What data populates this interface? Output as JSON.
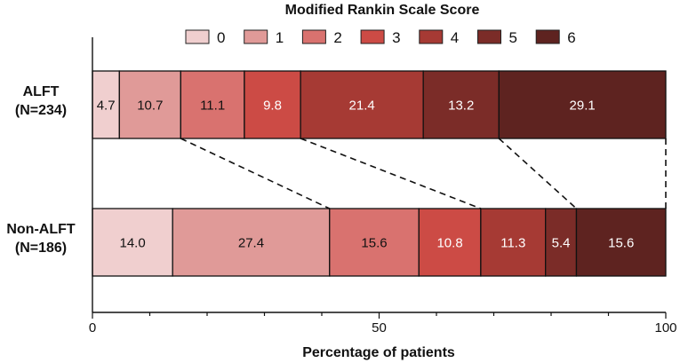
{
  "chart_data": {
    "type": "bar",
    "orientation": "horizontal-stacked-100",
    "title": "Modified Rankin Scale Score",
    "xlabel": "Percentage of patients",
    "ylabel": "",
    "xlim": [
      0,
      100
    ],
    "xticks": [
      0,
      50,
      100
    ],
    "legend": {
      "placement": "top",
      "entries": [
        "0",
        "1",
        "2",
        "3",
        "4",
        "5",
        "6"
      ]
    },
    "colors": [
      "#f0cfcf",
      "#e09a98",
      "#d9726f",
      "#cc4b45",
      "#a63a34",
      "#7b2c28",
      "#5e2320"
    ],
    "label_colors": [
      "#111111",
      "#111111",
      "#111111",
      "#ffffff",
      "#ffffff",
      "#ffffff",
      "#ffffff"
    ],
    "categories": [
      {
        "line1": "ALFT",
        "line2": "(N=234)",
        "values": [
          4.7,
          10.7,
          11.1,
          9.8,
          21.4,
          13.2,
          29.1
        ]
      },
      {
        "line1": "Non-ALFT",
        "line2": "(N=186)",
        "values": [
          14.0,
          27.4,
          15.6,
          10.8,
          11.3,
          5.4,
          15.6
        ]
      }
    ],
    "connectors": "dashed lines joining cumulative boundaries between the two bars"
  }
}
